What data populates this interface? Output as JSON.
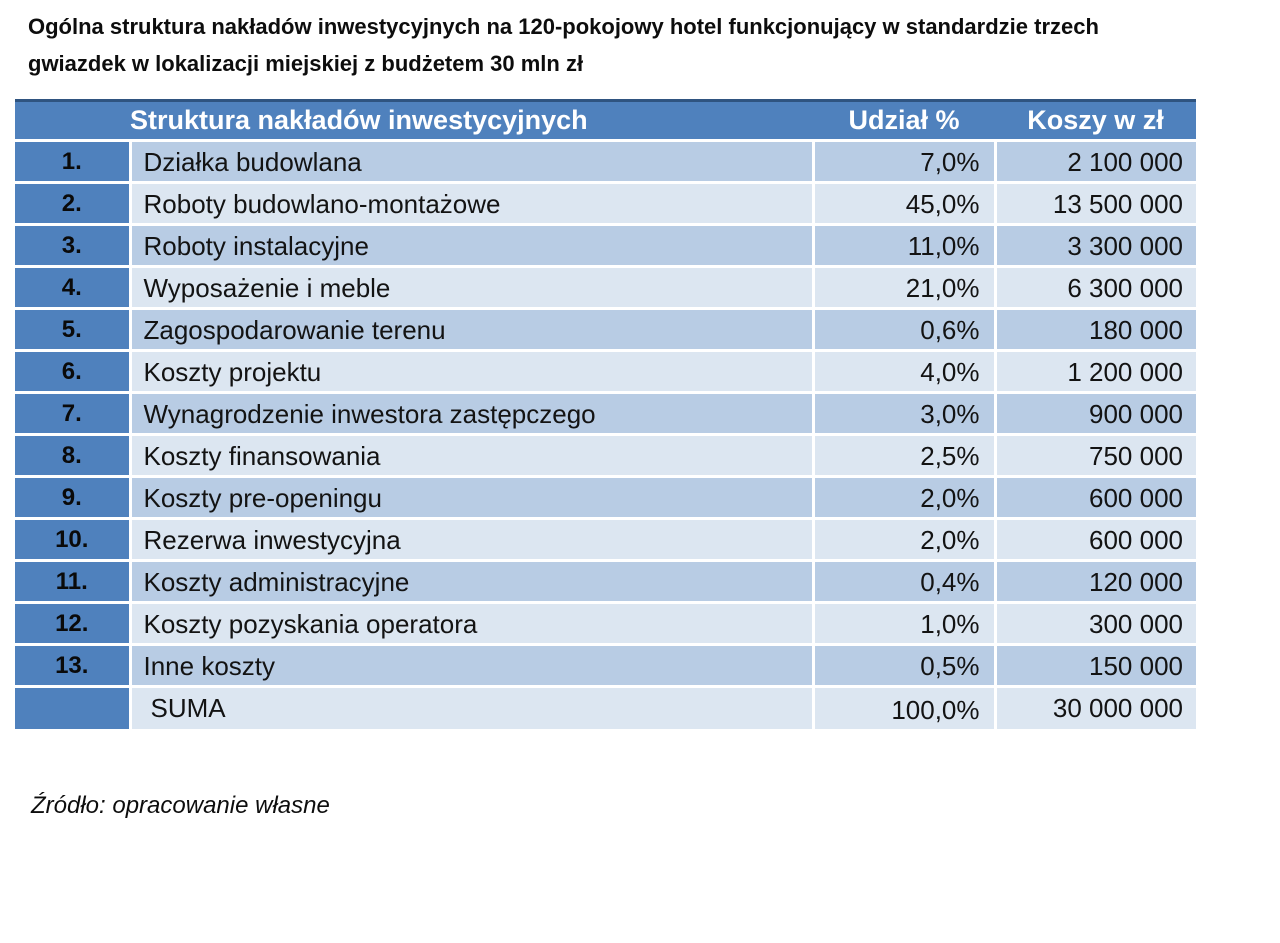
{
  "header": {
    "title_lines": [
      "Ogólna struktura nakładów inwestycyjnych na 120-pokojowy hotel funkcjonujący w standardzie trzech",
      "gwiazdek w lokalizacji miejskiej z budżetem 30 mln zł"
    ]
  },
  "table": {
    "headers": {
      "no": "",
      "structure": "Struktura nakładów inwestycyjnych",
      "share": "Udział %",
      "cost": "Koszy w zł"
    },
    "rows": [
      {
        "no": "1.",
        "name": "Działka budowlana",
        "share": "7,0%",
        "cost": "2 100 000"
      },
      {
        "no": "2.",
        "name": "Roboty budowlano-montażowe",
        "share": "45,0%",
        "cost": "13 500 000"
      },
      {
        "no": "3.",
        "name": "Roboty instalacyjne",
        "share": "11,0%",
        "cost": "3 300 000"
      },
      {
        "no": "4.",
        "name": "Wyposażenie i meble",
        "share": "21,0%",
        "cost": "6 300 000"
      },
      {
        "no": "5.",
        "name": "Zagospodarowanie terenu",
        "share": "0,6%",
        "cost": "180 000"
      },
      {
        "no": "6.",
        "name": "Koszty projektu",
        "share": "4,0%",
        "cost": "1 200 000"
      },
      {
        "no": "7.",
        "name": "Wynagrodzenie inwestora zastępczego",
        "share": "3,0%",
        "cost": "900 000"
      },
      {
        "no": "8.",
        "name": "Koszty finansowania",
        "share": "2,5%",
        "cost": "750 000"
      },
      {
        "no": "9.",
        "name": "Koszty pre-openingu",
        "share": "2,0%",
        "cost": "600 000"
      },
      {
        "no": "10.",
        "name": "Rezerwa inwestycyjna",
        "share": "2,0%",
        "cost": "600 000"
      },
      {
        "no": "11.",
        "name": "Koszty administracyjne",
        "share": "0,4%",
        "cost": "120 000"
      },
      {
        "no": "12.",
        "name": "Koszty pozyskania operatora",
        "share": "1,0%",
        "cost": "300 000"
      },
      {
        "no": "13.",
        "name": "Inne koszty",
        "share": "0,5%",
        "cost": "150 000"
      }
    ],
    "sum_row": {
      "no": "",
      "name": "SUMA",
      "share": "100,0%",
      "cost": "30 000 000"
    }
  },
  "footer": {
    "source_note": "Źródło: opracowanie własne"
  },
  "colors": {
    "header_blue": "#4F81BD",
    "header_top_border": "#2F5480",
    "row_shade_dark": "#B8CCE4",
    "row_shade_light": "#DCE6F1",
    "separator_white": "#FFFFFF",
    "header_text": "#FFFFFF",
    "body_text": "#131313"
  }
}
